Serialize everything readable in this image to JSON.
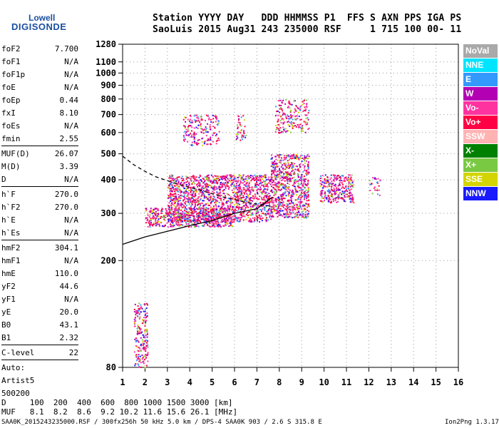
{
  "logo": {
    "word1": "Lowell",
    "word2": "DIGISONDE"
  },
  "header": {
    "labels": "Station YYYY DAY   DDD HHMMSS P1  FFS S AXN PPS IGA PS",
    "values": "SaoLuis 2015 Aug31 243 235000 RSF     1 715 100 00- 11"
  },
  "params": {
    "group1": [
      {
        "name": "foF2",
        "value": "7.700"
      },
      {
        "name": "foF1",
        "value": "N/A"
      },
      {
        "name": "foF1p",
        "value": "N/A"
      },
      {
        "name": "foE",
        "value": "N/A"
      },
      {
        "name": "foEp",
        "value": "0.44"
      },
      {
        "name": "fxI",
        "value": "8.10"
      },
      {
        "name": "foEs",
        "value": "N/A"
      },
      {
        "name": "fmin",
        "value": "2.55"
      }
    ],
    "group2": [
      {
        "name": "MUF(D)",
        "value": "26.07"
      },
      {
        "name": "M(D)",
        "value": "3.39"
      },
      {
        "name": "D",
        "value": "N/A"
      }
    ],
    "group3": [
      {
        "name": "h`F",
        "value": "270.0"
      },
      {
        "name": "h`F2",
        "value": "270.0"
      },
      {
        "name": "h`E",
        "value": "N/A"
      },
      {
        "name": "h`Es",
        "value": "N/A"
      }
    ],
    "group4": [
      {
        "name": "hmF2",
        "value": "304.1"
      },
      {
        "name": "hmF1",
        "value": "N/A"
      },
      {
        "name": "hmE",
        "value": "110.0"
      },
      {
        "name": "yF2",
        "value": "44.6"
      },
      {
        "name": "yF1",
        "value": "N/A"
      },
      {
        "name": "yE",
        "value": "20.0"
      },
      {
        "name": "B0",
        "value": "43.1"
      },
      {
        "name": "B1",
        "value": "2.32"
      }
    ],
    "group5": [
      {
        "name": "C-level",
        "value": "22"
      }
    ],
    "auto": [
      "Auto:",
      "Artist5",
      "500200"
    ]
  },
  "legend": [
    {
      "label": "NoVal",
      "color": "#a9a9a9"
    },
    {
      "label": "NNE",
      "color": "#00e5ff"
    },
    {
      "label": "E",
      "color": "#3399ff"
    },
    {
      "label": "W",
      "color": "#b300b3"
    },
    {
      "label": "Vo-",
      "color": "#ff33a0"
    },
    {
      "label": "Vo+",
      "color": "#ff0044"
    },
    {
      "label": "SSW",
      "color": "#ffb3b3"
    },
    {
      "label": "X-",
      "color": "#008000"
    },
    {
      "label": "X+",
      "color": "#7ac943"
    },
    {
      "label": "SSE",
      "color": "#d4d400"
    },
    {
      "label": "NNW",
      "color": "#1a1aff"
    }
  ],
  "footer": {
    "line1": "D     100  200  400  600  800 1000 1500 3000 [km]",
    "line2": "MUF   8.1  8.2  8.6  9.2 10.2 11.6 15.6 26.1 [MHz]",
    "line3": "SAA0K_2015243235000.RSF / 300fx256h 50 kHz 5.0 km / DPS-4 SAA0K 903 / 2.6 S 315.8 E",
    "version": "Ion2Png 1.3.17"
  },
  "chart_data": {
    "type": "scatter",
    "title": "",
    "xlabel": "",
    "ylabel": "",
    "xlim": [
      1,
      16
    ],
    "ylim": [
      80,
      1280
    ],
    "x_ticks": [
      1,
      2,
      3,
      4,
      5,
      6,
      7,
      8,
      9,
      10,
      11,
      12,
      13,
      14,
      15,
      16
    ],
    "y_ticks": [
      80,
      200,
      300,
      400,
      500,
      600,
      700,
      800,
      900,
      1000,
      1100,
      1280
    ],
    "y_scale": "log",
    "grid": "dotted",
    "clusters": [
      {
        "name": "low-frequency echoes",
        "x": [
          1.5,
          2.1
        ],
        "y": [
          80,
          140
        ],
        "density": 0.7
      },
      {
        "name": "F-layer base trace",
        "x": [
          2.0,
          6.0
        ],
        "y": [
          268,
          315
        ],
        "density": 1.0
      },
      {
        "name": "F-layer trace",
        "x": [
          3.0,
          7.6
        ],
        "y": [
          280,
          420
        ],
        "density": 1.0
      },
      {
        "name": "F2 dense region",
        "x": [
          7.6,
          9.3
        ],
        "y": [
          290,
          500
        ],
        "density": 1.0
      },
      {
        "name": "upper spread",
        "x": [
          7.8,
          9.3
        ],
        "y": [
          600,
          800
        ],
        "density": 0.5
      },
      {
        "name": "mid-altitude spread",
        "x": [
          3.7,
          5.3
        ],
        "y": [
          540,
          700
        ],
        "density": 0.5
      },
      {
        "name": "spread near 6.2",
        "x": [
          6.0,
          6.5
        ],
        "y": [
          560,
          700
        ],
        "density": 0.4
      },
      {
        "name": "F echoes near 10",
        "x": [
          9.8,
          11.3
        ],
        "y": [
          330,
          420
        ],
        "density": 0.9
      },
      {
        "name": "echoes near 12.3",
        "x": [
          12.0,
          12.5
        ],
        "y": [
          350,
          410
        ],
        "density": 0.4
      }
    ],
    "lines": [
      {
        "name": "modeled profile",
        "style": "solid",
        "x": [
          1,
          2,
          3,
          4,
          5,
          6,
          7,
          7.7
        ],
        "y": [
          230,
          245,
          257,
          270,
          282,
          300,
          312,
          345
        ]
      },
      {
        "name": "extrapolated profile",
        "style": "dashed",
        "x": [
          1,
          1.5,
          2,
          2.5,
          3,
          3.5,
          4,
          4.5,
          5,
          5.5,
          6,
          6.5,
          7,
          7.5,
          7.7
        ],
        "y": [
          490,
          455,
          430,
          410,
          397,
          385,
          375,
          365,
          355,
          345,
          338,
          330,
          325,
          320,
          318
        ]
      }
    ]
  }
}
